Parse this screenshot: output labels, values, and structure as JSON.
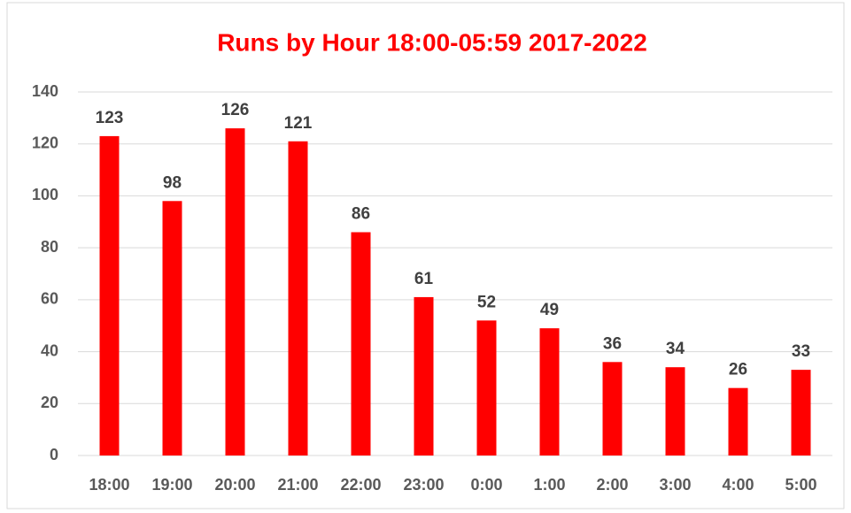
{
  "chart_data": {
    "type": "bar",
    "title": "Runs by Hour 18:00-05:59 2017-2022",
    "categories": [
      "18:00",
      "19:00",
      "20:00",
      "21:00",
      "22:00",
      "23:00",
      "0:00",
      "1:00",
      "2:00",
      "3:00",
      "4:00",
      "5:00"
    ],
    "values": [
      123,
      98,
      126,
      121,
      86,
      61,
      52,
      49,
      36,
      34,
      26,
      33
    ],
    "color": "#ff0000",
    "title_color": "#ff0000",
    "ylim": [
      0,
      140
    ],
    "yticks": [
      0,
      20,
      40,
      60,
      80,
      100,
      120,
      140
    ],
    "grid": true,
    "data_labels": true
  }
}
